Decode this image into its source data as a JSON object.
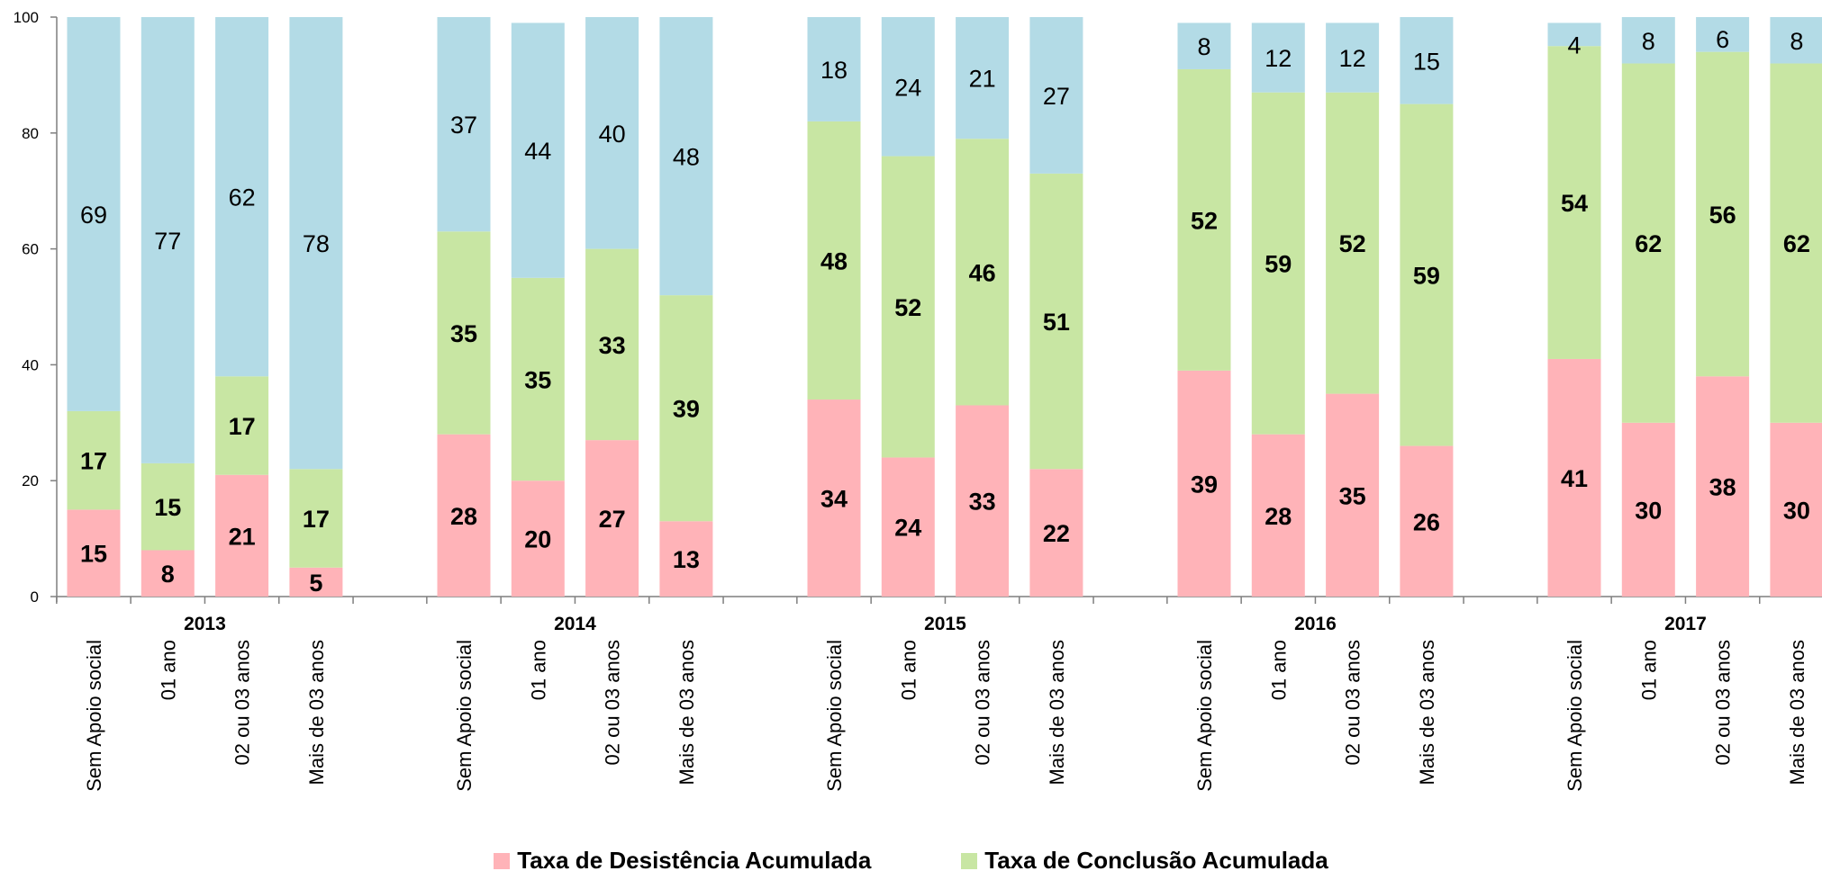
{
  "chart_data": {
    "type": "bar",
    "stacked": true,
    "title": "",
    "xlabel": "",
    "ylabel": "",
    "ylim": [
      0,
      100
    ],
    "yticks": [
      0,
      20,
      40,
      60,
      80,
      100
    ],
    "grid": false,
    "legend_position": "bottom",
    "groups": [
      "2013",
      "2014",
      "2015",
      "2016",
      "2017"
    ],
    "categories": [
      "Sem Apoio social",
      "01 ano",
      "02 ou 03 anos",
      "Mais de 03 anos"
    ],
    "series": [
      {
        "name": "Taxa de Desistência Acumulada",
        "color": "#ffb3b8",
        "label_bold": true,
        "values": [
          [
            15,
            8,
            21,
            5
          ],
          [
            28,
            20,
            27,
            13
          ],
          [
            34,
            24,
            33,
            22
          ],
          [
            39,
            28,
            35,
            26
          ],
          [
            41,
            30,
            38,
            30
          ]
        ]
      },
      {
        "name": "Taxa de Conclusão Acumulada",
        "color": "#c8e6a3",
        "label_bold": true,
        "values": [
          [
            17,
            15,
            17,
            17
          ],
          [
            35,
            35,
            33,
            39
          ],
          [
            48,
            52,
            46,
            51
          ],
          [
            52,
            59,
            52,
            59
          ],
          [
            54,
            62,
            56,
            62
          ]
        ]
      },
      {
        "name": "",
        "color": "#b3dbe6",
        "label_bold": false,
        "values": [
          [
            69,
            77,
            62,
            78
          ],
          [
            37,
            44,
            40,
            48
          ],
          [
            18,
            24,
            21,
            27
          ],
          [
            8,
            12,
            12,
            15
          ],
          [
            4,
            8,
            6,
            8
          ]
        ]
      }
    ]
  }
}
